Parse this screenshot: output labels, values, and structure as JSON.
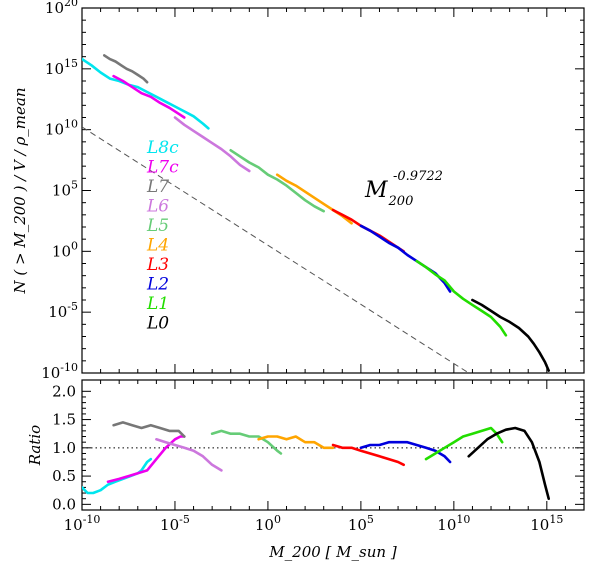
{
  "chart_data": [
    {
      "type": "line",
      "panel": "top",
      "ylabel": "N ( > M_200 ) / V / ρ_mean",
      "yscale": "log",
      "xscale": "log",
      "xlim_log10": [
        -10,
        17
      ],
      "ylim_log10": [
        -10,
        20
      ],
      "ytick_labels": [
        "10^20",
        "10^15",
        "10^10",
        "10^5",
        "10^0",
        "10^-5",
        "10^-10"
      ],
      "fit_line": {
        "label": "M_200^-0.9722",
        "base": "M",
        "sub": "200",
        "exp": "-0.9722",
        "slope": -0.9722,
        "intercept_log10": 0.5,
        "style": "dashed",
        "color": "#555555"
      },
      "series": [
        {
          "name": "L8c",
          "color": "#00e5ee",
          "x_log10": [
            -10,
            -9.5,
            -9,
            -8.5,
            -8,
            -7.5,
            -7,
            -6.5,
            -6,
            -5.5,
            -5,
            -4.5,
            -4,
            -3.5,
            -3.2
          ],
          "y_log10": [
            15.8,
            15.3,
            14.7,
            14.2,
            14.0,
            13.7,
            13.5,
            13.1,
            12.7,
            12.3,
            11.9,
            11.5,
            11.1,
            10.5,
            10.1
          ]
        },
        {
          "name": "L7c",
          "color": "#ee00ee",
          "x_log10": [
            -8.3,
            -7.8,
            -7.3,
            -6.8,
            -6.3,
            -5.8,
            -5.3,
            -4.8,
            -4.5
          ],
          "y_log10": [
            14.4,
            14.0,
            13.5,
            13.0,
            12.7,
            12.2,
            11.8,
            11.3,
            11.0
          ]
        },
        {
          "name": "L7",
          "color": "#777777",
          "x_log10": [
            -8.8,
            -8.5,
            -8.2,
            -7.9,
            -7.6,
            -7.3,
            -7.0,
            -6.7,
            -6.5
          ],
          "y_log10": [
            16.1,
            15.8,
            15.6,
            15.3,
            15.0,
            14.8,
            14.5,
            14.2,
            13.9
          ]
        },
        {
          "name": "L6",
          "color": "#cc77dd",
          "x_log10": [
            -5.0,
            -4.5,
            -4.0,
            -3.5,
            -3.0,
            -2.5,
            -2.0,
            -1.5,
            -1.0
          ],
          "y_log10": [
            11.0,
            10.4,
            9.9,
            9.4,
            8.9,
            8.4,
            7.8,
            7.1,
            6.6
          ]
        },
        {
          "name": "L5",
          "color": "#66cc77",
          "x_log10": [
            -2.0,
            -1.5,
            -1.0,
            -0.5,
            0.0,
            0.5,
            1.0,
            1.5,
            2.0,
            2.5,
            3.0
          ],
          "y_log10": [
            8.3,
            7.8,
            7.3,
            6.9,
            6.3,
            5.9,
            5.4,
            4.8,
            4.2,
            3.7,
            3.3
          ]
        },
        {
          "name": "L4",
          "color": "#ffa500",
          "x_log10": [
            0.5,
            1.0,
            1.5,
            2.0,
            2.5,
            3.0,
            3.5,
            4.0,
            4.5
          ],
          "y_log10": [
            6.3,
            5.8,
            5.4,
            4.9,
            4.4,
            3.9,
            3.4,
            2.9,
            2.3
          ]
        },
        {
          "name": "L3",
          "color": "#ff0000",
          "x_log10": [
            3.5,
            4.0,
            4.5,
            5.0,
            5.5,
            6.0,
            6.5,
            7.0,
            7.3
          ],
          "y_log10": [
            3.4,
            3.0,
            2.6,
            2.1,
            1.7,
            1.3,
            0.8,
            0.3,
            0.0
          ]
        },
        {
          "name": "L2",
          "color": "#0000dd",
          "x_log10": [
            5.0,
            5.5,
            6.0,
            6.5,
            7.0,
            7.5,
            8.0,
            8.5,
            9.0,
            9.5,
            9.8
          ],
          "y_log10": [
            2.1,
            1.7,
            1.2,
            0.7,
            0.3,
            -0.3,
            -0.8,
            -1.3,
            -1.8,
            -2.6,
            -3.3
          ]
        },
        {
          "name": "L1",
          "color": "#22dd00",
          "x_log10": [
            8.0,
            8.5,
            9.0,
            9.5,
            10.0,
            10.5,
            11.0,
            11.5,
            12.0,
            12.5,
            12.8
          ],
          "y_log10": [
            -0.8,
            -1.3,
            -1.9,
            -2.4,
            -3.3,
            -3.9,
            -4.4,
            -4.9,
            -5.4,
            -6.2,
            -6.9
          ]
        },
        {
          "name": "L0",
          "color": "#000000",
          "x_log10": [
            11.0,
            11.5,
            12.0,
            12.5,
            13.0,
            13.5,
            14.0,
            14.3,
            14.6,
            14.9,
            15.1
          ],
          "y_log10": [
            -4.0,
            -4.4,
            -4.9,
            -5.4,
            -5.8,
            -6.3,
            -7.0,
            -7.6,
            -8.3,
            -9.1,
            -9.8
          ]
        }
      ]
    },
    {
      "type": "line",
      "panel": "bottom",
      "ylabel": "Ratio",
      "xlabel": "M_200 [ M_sun ]",
      "xscale": "log",
      "xlim_log10": [
        -10,
        17
      ],
      "ylim": [
        -0.1,
        2.2
      ],
      "xtick_labels": [
        "10^-10",
        "10^-5",
        "10^0",
        "10^5",
        "10^10",
        "10^15"
      ],
      "ytick_labels": [
        "0.0",
        "0.5",
        "1.0",
        "1.5",
        "2.0"
      ],
      "reference_line": {
        "y": 1.0,
        "style": "dotted"
      },
      "series": [
        {
          "name": "L8c",
          "color": "#00e5ee",
          "x_log10": [
            -10,
            -9.7,
            -9.4,
            -9.0,
            -8.6,
            -8.2,
            -7.8,
            -7.4,
            -7.0,
            -6.8,
            -6.5,
            -6.3
          ],
          "y_log10_equivalent": null,
          "y": [
            0.3,
            0.2,
            0.2,
            0.25,
            0.35,
            0.4,
            0.45,
            0.5,
            0.55,
            0.6,
            0.75,
            0.8
          ]
        },
        {
          "name": "L7c",
          "color": "#ee00ee",
          "x_log10": [
            -8.6,
            -8.0,
            -7.5,
            -7.0,
            -6.5,
            -6.0,
            -5.5,
            -5.0,
            -4.7,
            -4.5
          ],
          "y": [
            0.4,
            0.45,
            0.5,
            0.55,
            0.6,
            0.8,
            1.0,
            1.15,
            1.2,
            1.2
          ]
        },
        {
          "name": "L7",
          "color": "#777777",
          "x_log10": [
            -8.3,
            -7.8,
            -7.3,
            -6.8,
            -6.3,
            -5.8,
            -5.3,
            -4.8,
            -4.5
          ],
          "y": [
            1.4,
            1.45,
            1.4,
            1.35,
            1.4,
            1.35,
            1.3,
            1.3,
            1.2
          ]
        },
        {
          "name": "L6",
          "color": "#cc77dd",
          "x_log10": [
            -6.0,
            -5.5,
            -5.0,
            -4.5,
            -4.0,
            -3.5,
            -3.0,
            -2.5
          ],
          "y": [
            1.15,
            1.1,
            1.05,
            1.0,
            0.95,
            0.85,
            0.7,
            0.6
          ]
        },
        {
          "name": "L5",
          "color": "#66cc77",
          "x_log10": [
            -3.0,
            -2.5,
            -2.0,
            -1.5,
            -1.0,
            -0.5,
            0.0,
            0.5,
            0.7
          ],
          "y": [
            1.25,
            1.3,
            1.25,
            1.25,
            1.2,
            1.2,
            1.1,
            0.95,
            0.9
          ]
        },
        {
          "name": "L4",
          "color": "#ffa500",
          "x_log10": [
            -0.5,
            0.0,
            0.5,
            1.0,
            1.5,
            2.0,
            2.5,
            3.0,
            3.5
          ],
          "y": [
            1.15,
            1.2,
            1.2,
            1.15,
            1.2,
            1.1,
            1.1,
            1.0,
            1.0
          ]
        },
        {
          "name": "L3",
          "color": "#ff0000",
          "x_log10": [
            3.5,
            4.0,
            4.5,
            5.0,
            5.5,
            6.0,
            6.5,
            7.0,
            7.3
          ],
          "y": [
            1.05,
            1.0,
            1.0,
            0.95,
            0.9,
            0.85,
            0.8,
            0.75,
            0.7
          ]
        },
        {
          "name": "L2",
          "color": "#0000dd",
          "x_log10": [
            5.0,
            5.5,
            6.0,
            6.5,
            7.0,
            7.5,
            8.0,
            8.5,
            9.0,
            9.5,
            9.8
          ],
          "y": [
            1.0,
            1.05,
            1.05,
            1.1,
            1.1,
            1.1,
            1.05,
            1.0,
            0.95,
            0.85,
            0.75
          ]
        },
        {
          "name": "L1",
          "color": "#22dd00",
          "x_log10": [
            8.5,
            9.0,
            9.5,
            10.0,
            10.5,
            11.0,
            11.5,
            12.0,
            12.3,
            12.6
          ],
          "y": [
            0.8,
            0.9,
            1.0,
            1.1,
            1.2,
            1.25,
            1.3,
            1.35,
            1.25,
            1.1
          ]
        },
        {
          "name": "L0",
          "color": "#000000",
          "x_log10": [
            10.8,
            11.3,
            11.8,
            12.3,
            12.8,
            13.3,
            13.8,
            14.2,
            14.6,
            14.9,
            15.1
          ],
          "y": [
            0.85,
            1.0,
            1.15,
            1.25,
            1.32,
            1.35,
            1.3,
            1.1,
            0.75,
            0.35,
            0.1
          ]
        }
      ]
    }
  ]
}
